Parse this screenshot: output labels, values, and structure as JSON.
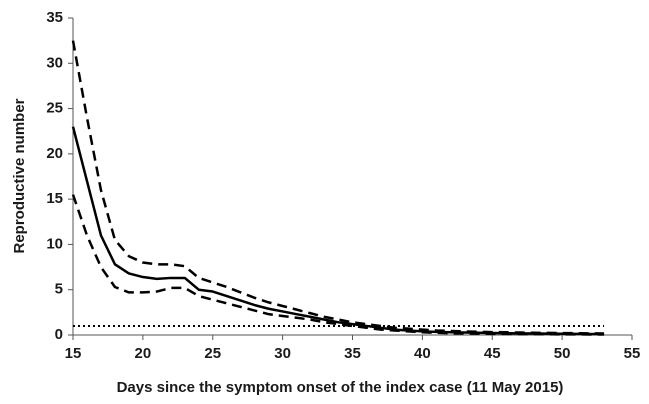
{
  "chart_data": {
    "type": "line",
    "xlabel": "Days since the symptom onset of the index case (11 May 2015)",
    "ylabel": "Reproductive number",
    "x": [
      15,
      16,
      17,
      18,
      19,
      20,
      21,
      22,
      23,
      24,
      25,
      26,
      27,
      28,
      29,
      30,
      31,
      32,
      33,
      34,
      35,
      36,
      37,
      38,
      39,
      40,
      41,
      42,
      43,
      44,
      45,
      46,
      47,
      48,
      49,
      50,
      51,
      52,
      53
    ],
    "series": [
      {
        "color": "#000000",
        "dash": "solid",
        "values": [
          23,
          17,
          11,
          7.8,
          6.8,
          6.4,
          6.2,
          6.3,
          6.3,
          5.0,
          4.8,
          4.3,
          3.8,
          3.3,
          2.9,
          2.6,
          2.3,
          2.0,
          1.7,
          1.4,
          1.2,
          1.0,
          0.8,
          0.6,
          0.5,
          0.4,
          0.35,
          0.3,
          0.28,
          0.25,
          0.22,
          0.2,
          0.18,
          0.16,
          0.15,
          0.14,
          0.12,
          0.11,
          0.1
        ]
      },
      {
        "color": "#000000",
        "dash": "dashed",
        "values": [
          32.5,
          24,
          16,
          10.5,
          8.7,
          8,
          7.8,
          7.8,
          7.6,
          6.3,
          5.8,
          5.3,
          4.7,
          4.1,
          3.6,
          3.2,
          2.8,
          2.4,
          2.0,
          1.7,
          1.4,
          1.2,
          1.0,
          0.8,
          0.7,
          0.6,
          0.5,
          0.45,
          0.4,
          0.35,
          0.32,
          0.3,
          0.27,
          0.25,
          0.23,
          0.21,
          0.2,
          0.18,
          0.17
        ]
      },
      {
        "color": "#000000",
        "dash": "dashed",
        "values": [
          15.5,
          11,
          7.5,
          5.3,
          4.7,
          4.7,
          4.8,
          5.2,
          5.2,
          4.3,
          3.9,
          3.5,
          3.1,
          2.7,
          2.3,
          2.1,
          1.9,
          1.7,
          1.4,
          1.2,
          1.0,
          0.8,
          0.6,
          0.5,
          0.4,
          0.3,
          0.25,
          0.2,
          0.18,
          0.15,
          0.13,
          0.12,
          0.1,
          0.09,
          0.08,
          0.07,
          0.07,
          0.06,
          0.05
        ]
      },
      {
        "color": "#000000",
        "dash": "dotted",
        "values": [
          1,
          1,
          1,
          1,
          1,
          1,
          1,
          1,
          1,
          1,
          1,
          1,
          1,
          1,
          1,
          1,
          1,
          1,
          1,
          1,
          1,
          1,
          1,
          1,
          1,
          1,
          1,
          1,
          1,
          1,
          1,
          1,
          1,
          1,
          1,
          1,
          1,
          1,
          1
        ]
      }
    ],
    "xlim": [
      15,
      55
    ],
    "xticks": [
      15,
      20,
      25,
      30,
      35,
      40,
      45,
      50,
      55
    ],
    "ylim": [
      0,
      35
    ],
    "yticks": [
      0,
      5,
      10,
      15,
      20,
      25,
      30,
      35
    ],
    "grid": false
  }
}
